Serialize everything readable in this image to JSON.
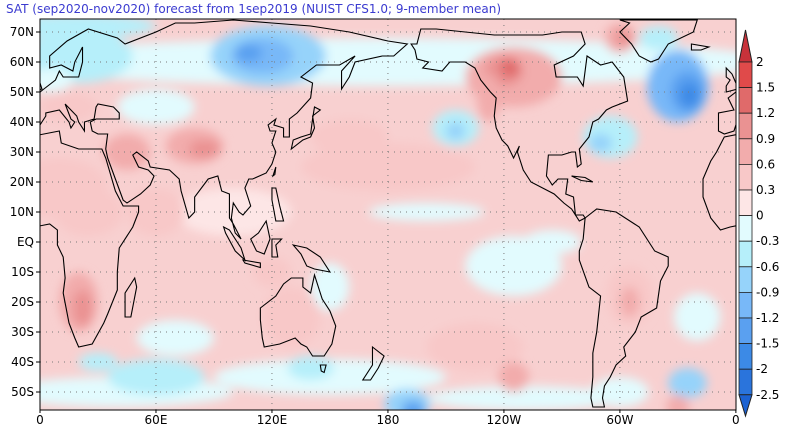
{
  "title": "SAT (sep2020-nov2020) forecast from 1sep2019 (NUIST CFS1.0; 9-member mean)",
  "lat_labels": [
    "70N",
    "60N",
    "50N",
    "40N",
    "30N",
    "20N",
    "10N",
    "EQ",
    "10S",
    "20S",
    "30S",
    "40S",
    "50S"
  ],
  "lon_labels": [
    "0",
    "60E",
    "120E",
    "180",
    "120W",
    "60W",
    "0"
  ],
  "legend": {
    "labels": [
      "2",
      "1.5",
      "1.2",
      "0.9",
      "0.6",
      "0.3",
      "0",
      "-0.3",
      "-0.6",
      "-0.9",
      "-1.2",
      "-1.5",
      "-2",
      "-2.5"
    ],
    "colors": [
      "#c8323a",
      "#e04a4a",
      "#e06a6a",
      "#ea9292",
      "#f2acac",
      "#f8c8c8",
      "#fde6e6",
      "#e2fbfe",
      "#b6effa",
      "#96d3fa",
      "#78b8f8",
      "#5aa0f0",
      "#3c8ae6",
      "#2a74dc",
      "#1c62d2"
    ]
  }
}
